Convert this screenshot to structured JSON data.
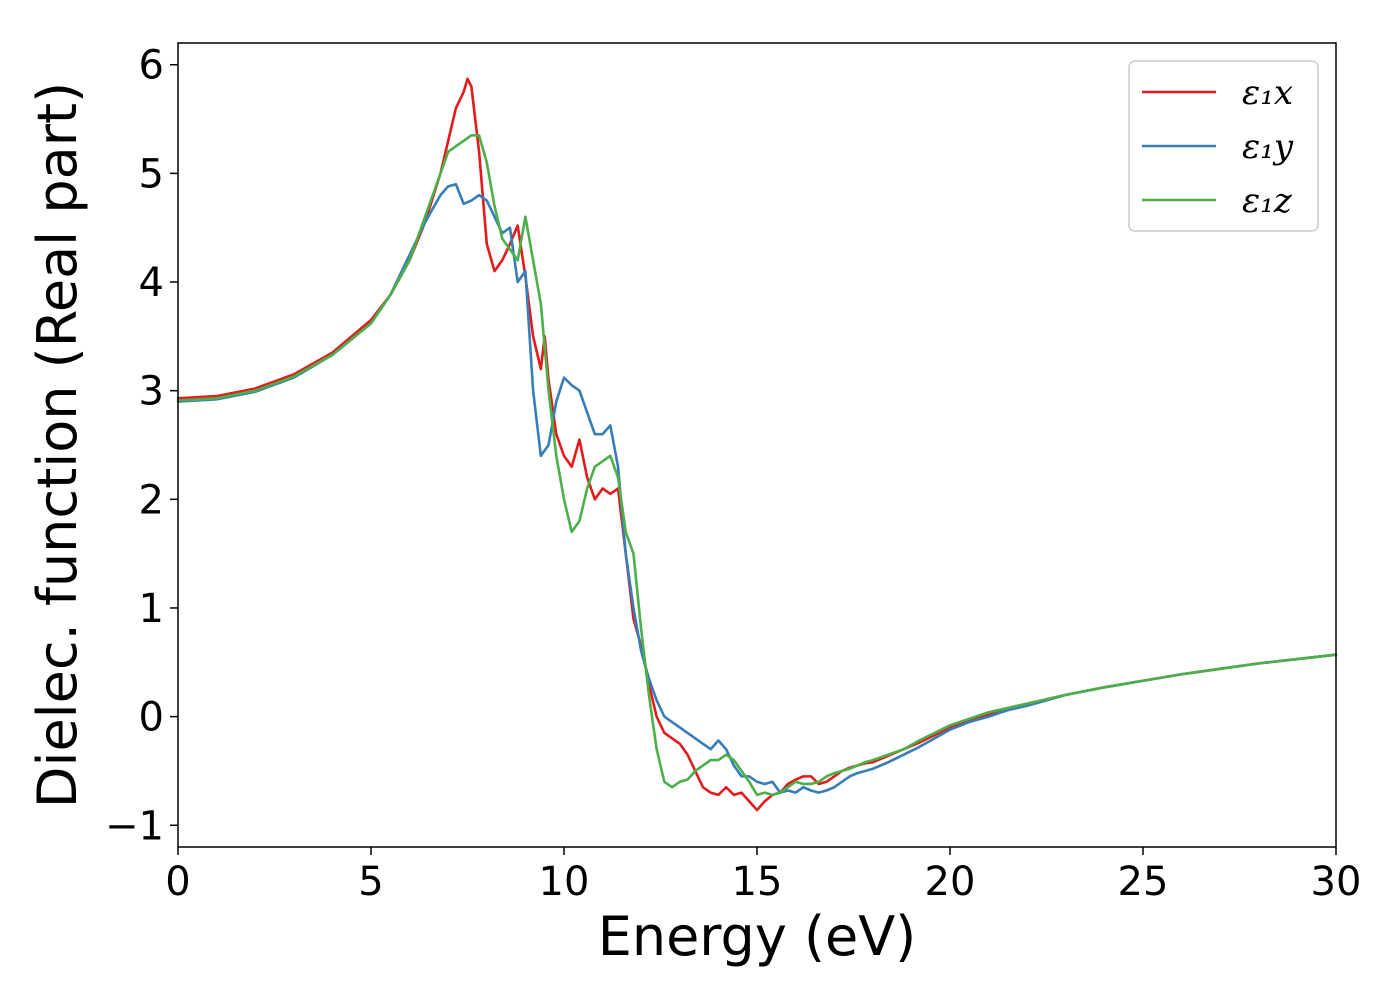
{
  "chart_data": {
    "type": "line",
    "title": "",
    "xlabel": "Energy (eV)",
    "ylabel": "Dielec. function (Real part)",
    "xlim": [
      0,
      30
    ],
    "ylim": [
      -1.2,
      6.2
    ],
    "xticks": [
      {
        "value": 0,
        "label": "0"
      },
      {
        "value": 5,
        "label": "5"
      },
      {
        "value": 10,
        "label": "10"
      },
      {
        "value": 15,
        "label": "15"
      },
      {
        "value": 20,
        "label": "20"
      },
      {
        "value": 25,
        "label": "25"
      },
      {
        "value": 30,
        "label": "30"
      }
    ],
    "yticks": [
      {
        "value": -1,
        "label": "−1"
      },
      {
        "value": 0,
        "label": "0"
      },
      {
        "value": 1,
        "label": "1"
      },
      {
        "value": 2,
        "label": "2"
      },
      {
        "value": 3,
        "label": "3"
      },
      {
        "value": 4,
        "label": "4"
      },
      {
        "value": 5,
        "label": "5"
      },
      {
        "value": 6,
        "label": "6"
      }
    ],
    "grid": false,
    "legend_position": "top-right",
    "series": [
      {
        "name": "ε₁x",
        "color": "#e41a1c",
        "x": [
          0,
          1,
          2,
          3,
          4,
          5,
          5.5,
          6,
          6.4,
          6.8,
          7.0,
          7.2,
          7.4,
          7.5,
          7.6,
          7.8,
          8.0,
          8.2,
          8.4,
          8.6,
          8.8,
          9.0,
          9.2,
          9.4,
          9.5,
          9.6,
          9.8,
          10.0,
          10.2,
          10.4,
          10.6,
          10.8,
          11.0,
          11.2,
          11.4,
          11.6,
          11.8,
          12.0,
          12.2,
          12.4,
          12.6,
          12.8,
          13.0,
          13.2,
          13.4,
          13.6,
          13.8,
          14.0,
          14.2,
          14.4,
          14.6,
          14.8,
          15.0,
          15.2,
          15.4,
          15.6,
          15.8,
          16.0,
          16.2,
          16.4,
          16.6,
          16.8,
          17.0,
          17.2,
          17.4,
          17.6,
          17.8,
          18.0,
          18.4,
          18.8,
          19.2,
          19.6,
          20.0,
          20.5,
          21.0,
          21.5,
          22.0,
          22.5,
          23.0,
          24.0,
          25.0,
          26.0,
          27.0,
          28.0,
          29.0,
          30.0
        ],
        "y": [
          2.93,
          2.95,
          3.02,
          3.15,
          3.35,
          3.65,
          3.88,
          4.2,
          4.55,
          5.0,
          5.3,
          5.6,
          5.75,
          5.87,
          5.8,
          5.2,
          4.35,
          4.1,
          4.2,
          4.35,
          4.52,
          4.05,
          3.5,
          3.2,
          3.5,
          3.1,
          2.6,
          2.4,
          2.3,
          2.55,
          2.2,
          2.0,
          2.1,
          2.05,
          2.1,
          1.5,
          0.9,
          0.65,
          0.3,
          0.0,
          -0.15,
          -0.2,
          -0.25,
          -0.35,
          -0.5,
          -0.65,
          -0.7,
          -0.72,
          -0.65,
          -0.72,
          -0.7,
          -0.78,
          -0.86,
          -0.78,
          -0.72,
          -0.7,
          -0.62,
          -0.58,
          -0.55,
          -0.55,
          -0.62,
          -0.6,
          -0.55,
          -0.5,
          -0.47,
          -0.45,
          -0.43,
          -0.42,
          -0.36,
          -0.3,
          -0.24,
          -0.17,
          -0.1,
          -0.03,
          0.02,
          0.07,
          0.11,
          0.16,
          0.2,
          0.27,
          0.33,
          0.39,
          0.44,
          0.49,
          0.53,
          0.57
        ]
      },
      {
        "name": "ε₁y",
        "color": "#377eb8",
        "x": [
          0,
          1,
          2,
          3,
          4,
          5,
          5.5,
          6,
          6.4,
          6.8,
          7.0,
          7.2,
          7.4,
          7.6,
          7.8,
          8.0,
          8.2,
          8.4,
          8.6,
          8.8,
          9.0,
          9.2,
          9.4,
          9.6,
          9.8,
          10.0,
          10.2,
          10.4,
          10.6,
          10.8,
          11.0,
          11.2,
          11.4,
          11.6,
          11.8,
          12.0,
          12.2,
          12.4,
          12.6,
          12.8,
          13.0,
          13.2,
          13.4,
          13.6,
          13.8,
          14.0,
          14.2,
          14.4,
          14.6,
          14.8,
          15.0,
          15.2,
          15.4,
          15.6,
          15.8,
          16.0,
          16.2,
          16.4,
          16.6,
          16.8,
          17.0,
          17.2,
          17.4,
          17.6,
          17.8,
          18.0,
          18.4,
          18.8,
          19.2,
          19.6,
          20.0,
          20.5,
          21.0,
          21.5,
          22.0,
          22.5,
          23.0,
          24.0,
          25.0,
          26.0,
          27.0,
          28.0,
          29.0,
          30.0
        ],
        "y": [
          2.9,
          2.92,
          2.99,
          3.12,
          3.33,
          3.62,
          3.88,
          4.25,
          4.55,
          4.8,
          4.88,
          4.9,
          4.72,
          4.75,
          4.8,
          4.75,
          4.6,
          4.45,
          4.5,
          4.0,
          4.1,
          3.0,
          2.4,
          2.5,
          2.9,
          3.12,
          3.05,
          3.0,
          2.8,
          2.6,
          2.6,
          2.68,
          2.3,
          1.5,
          1.0,
          0.6,
          0.35,
          0.15,
          0.0,
          -0.05,
          -0.1,
          -0.15,
          -0.2,
          -0.25,
          -0.3,
          -0.22,
          -0.3,
          -0.45,
          -0.55,
          -0.55,
          -0.6,
          -0.62,
          -0.6,
          -0.7,
          -0.68,
          -0.7,
          -0.65,
          -0.68,
          -0.7,
          -0.68,
          -0.65,
          -0.6,
          -0.55,
          -0.52,
          -0.5,
          -0.48,
          -0.42,
          -0.35,
          -0.28,
          -0.2,
          -0.12,
          -0.05,
          0.0,
          0.06,
          0.1,
          0.15,
          0.2,
          0.27,
          0.33,
          0.39,
          0.44,
          0.49,
          0.53,
          0.57
        ]
      },
      {
        "name": "ε₁z",
        "color": "#4daf4a",
        "x": [
          0,
          1,
          2,
          3,
          4,
          5,
          5.5,
          6,
          6.4,
          6.8,
          7.0,
          7.2,
          7.4,
          7.6,
          7.8,
          8.0,
          8.2,
          8.4,
          8.6,
          8.8,
          9.0,
          9.2,
          9.4,
          9.6,
          9.8,
          10.0,
          10.2,
          10.4,
          10.6,
          10.8,
          11.0,
          11.2,
          11.4,
          11.6,
          11.8,
          12.0,
          12.2,
          12.4,
          12.6,
          12.8,
          13.0,
          13.2,
          13.4,
          13.6,
          13.8,
          14.0,
          14.2,
          14.4,
          14.6,
          14.8,
          15.0,
          15.2,
          15.4,
          15.6,
          15.8,
          16.0,
          16.2,
          16.4,
          16.6,
          16.8,
          17.0,
          17.2,
          17.4,
          17.6,
          17.8,
          18.0,
          18.4,
          18.8,
          19.2,
          19.6,
          20.0,
          20.5,
          21.0,
          21.5,
          22.0,
          22.5,
          23.0,
          24.0,
          25.0,
          26.0,
          27.0,
          28.0,
          29.0,
          30.0
        ],
        "y": [
          2.91,
          2.93,
          3.0,
          3.13,
          3.33,
          3.62,
          3.88,
          4.2,
          4.6,
          5.0,
          5.2,
          5.25,
          5.3,
          5.35,
          5.35,
          5.1,
          4.7,
          4.4,
          4.3,
          4.2,
          4.6,
          4.2,
          3.8,
          3.0,
          2.4,
          2.0,
          1.7,
          1.8,
          2.1,
          2.3,
          2.35,
          2.4,
          2.2,
          1.7,
          1.5,
          0.8,
          0.2,
          -0.3,
          -0.6,
          -0.65,
          -0.6,
          -0.58,
          -0.5,
          -0.45,
          -0.4,
          -0.4,
          -0.35,
          -0.4,
          -0.5,
          -0.6,
          -0.72,
          -0.7,
          -0.72,
          -0.7,
          -0.65,
          -0.6,
          -0.62,
          -0.62,
          -0.6,
          -0.55,
          -0.52,
          -0.5,
          -0.48,
          -0.45,
          -0.42,
          -0.4,
          -0.35,
          -0.3,
          -0.22,
          -0.15,
          -0.08,
          -0.02,
          0.04,
          0.08,
          0.12,
          0.16,
          0.2,
          0.27,
          0.33,
          0.39,
          0.44,
          0.49,
          0.53,
          0.57
        ]
      }
    ]
  }
}
